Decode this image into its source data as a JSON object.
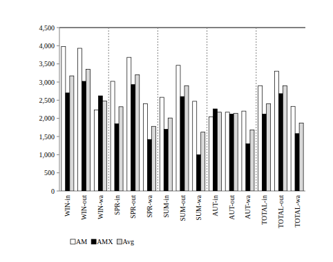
{
  "chart_data": {
    "type": "bar",
    "categories": [
      "WIN-in",
      "WIN-out",
      "WIN-wa",
      "SPR-in",
      "SPR-out",
      "SPR-wa",
      "SUM-in",
      "SUM-out",
      "SUM-wa",
      "AUT-in",
      "AUT-out",
      "AUT-wa",
      "TOTAL-in",
      "TOTAL-out",
      "TOTAL-wa"
    ],
    "series": [
      {
        "name": "AM",
        "color": "#ffffff",
        "values": [
          3980,
          3930,
          2230,
          3020,
          3680,
          2400,
          2580,
          3460,
          2470,
          2040,
          2170,
          2200,
          2900,
          3300,
          2330
        ]
      },
      {
        "name": "AMX",
        "color": "#000000",
        "values": [
          2700,
          3020,
          2620,
          1850,
          2930,
          1420,
          1700,
          2600,
          1000,
          2260,
          2120,
          1300,
          2120,
          2680,
          1580
        ]
      },
      {
        "name": "Avg",
        "color": "#d9d9d9",
        "values": [
          3170,
          3350,
          2480,
          2320,
          3200,
          1780,
          2010,
          2900,
          1620,
          2170,
          2140,
          1680,
          2400,
          2900,
          1870
        ]
      }
    ],
    "ylim": [
      0,
      4500
    ],
    "yticks": [
      0,
      500,
      {
        "value": 1000,
        "label": "1,000"
      },
      {
        "value": 1500,
        "label": "1,500"
      },
      {
        "value": 2000,
        "label": "2,000"
      },
      {
        "value": 2500,
        "label": "2,500"
      },
      {
        "value": 3000,
        "label": "3,000"
      },
      {
        "value": 3500,
        "label": "3,500"
      },
      {
        "value": 4000,
        "label": "4,000"
      },
      {
        "value": 4500,
        "label": "4,500"
      }
    ],
    "grid": false,
    "legend": "bottom"
  }
}
